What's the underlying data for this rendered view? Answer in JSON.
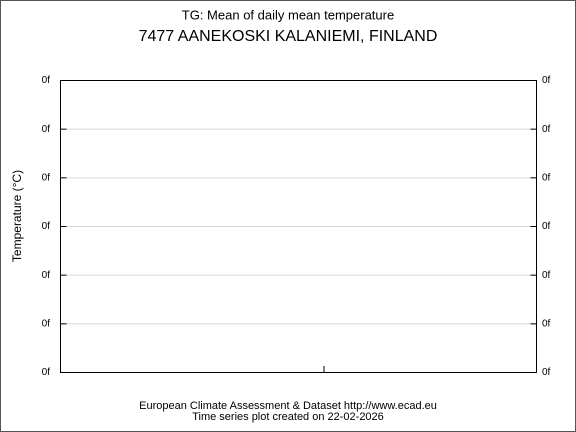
{
  "chart_data": {
    "type": "line",
    "title": "TG: Mean of daily mean temperature",
    "subtitle": "7477 AANEKOSKI KALANIEMI, FINLAND",
    "ylabel": "Temperature (°C)",
    "ylim": [
      0,
      6
    ],
    "yticks": [
      {
        "value": 0,
        "label": "0f"
      },
      {
        "value": 1,
        "label": "0f"
      },
      {
        "value": 2,
        "label": "0f"
      },
      {
        "value": 3,
        "label": "0f"
      },
      {
        "value": 4,
        "label": "0f"
      },
      {
        "value": 5,
        "label": "0f"
      },
      {
        "value": 6,
        "label": "0f"
      }
    ],
    "grid": true,
    "series": [],
    "footer": [
      "European Climate Assessment & Dataset  http://www.ecad.eu",
      "Time series plot created on 22-02-2026"
    ]
  }
}
